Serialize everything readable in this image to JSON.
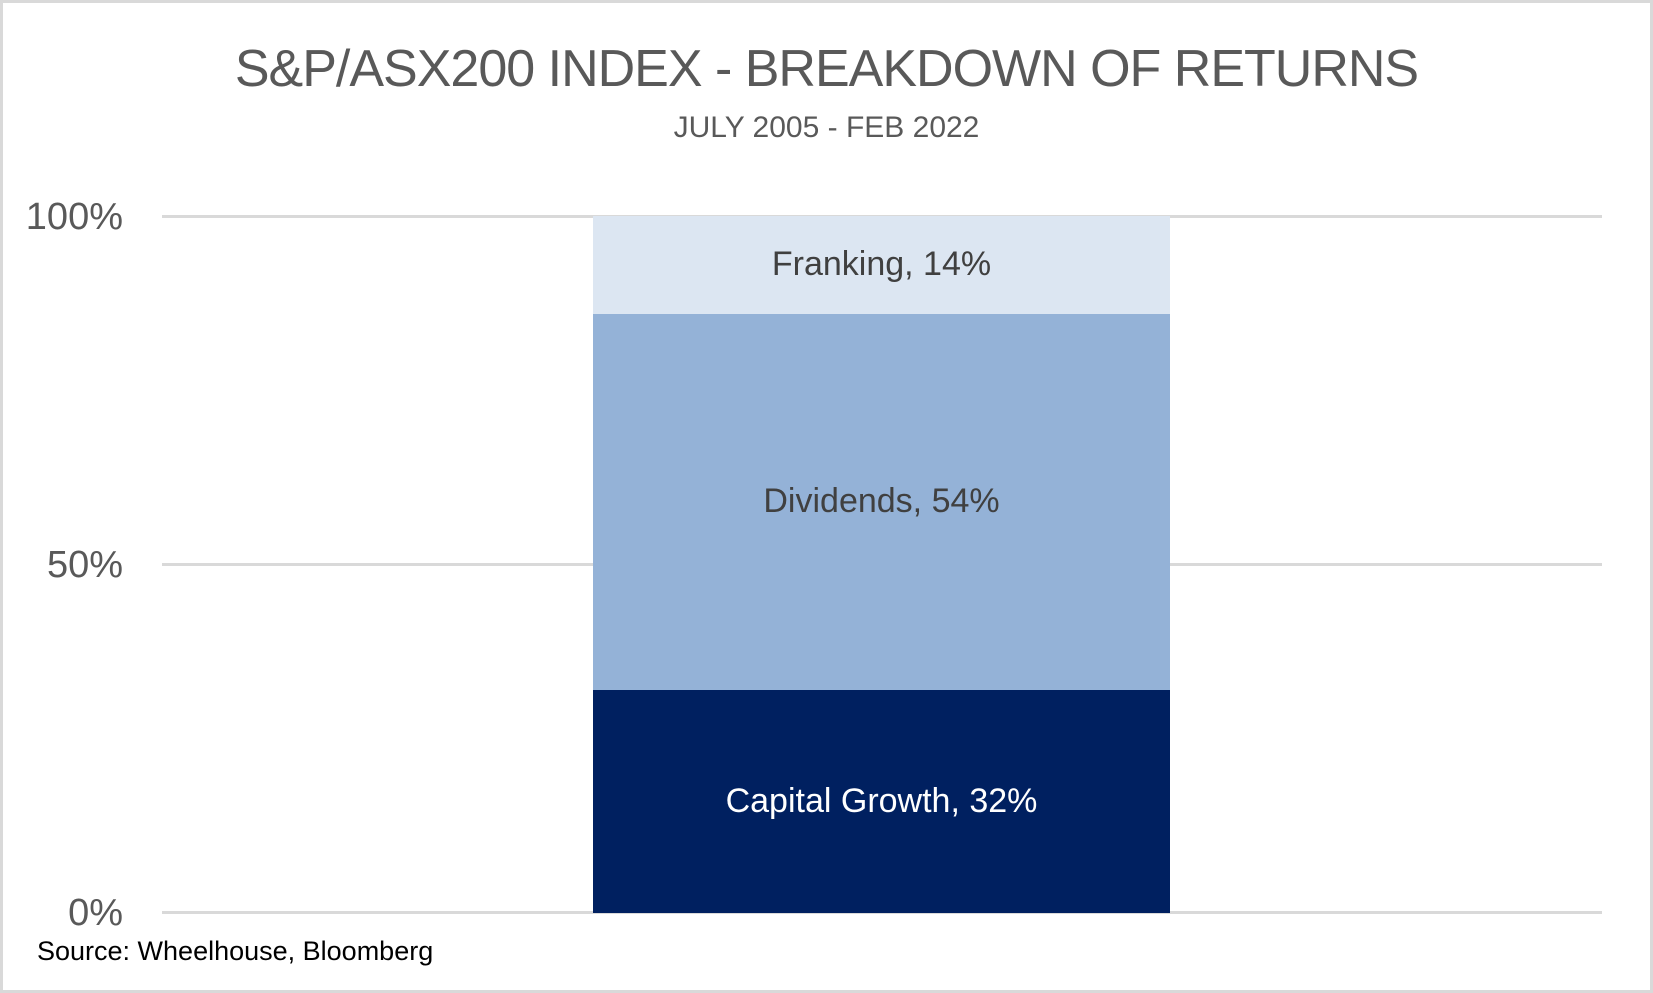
{
  "chart_data": {
    "type": "bar",
    "stacked": true,
    "title": "S&P/ASX200 INDEX - BREAKDOWN OF RETURNS",
    "subtitle": "JULY 2005 - FEB 2022",
    "series": [
      {
        "name": "Franking",
        "value": 14,
        "label": "Franking, 14%",
        "color": "#dce6f2",
        "label_color": "#404040"
      },
      {
        "name": "Dividends",
        "value": 54,
        "label": "Dividends, 54%",
        "color": "#94b2d7",
        "label_color": "#404040"
      },
      {
        "name": "Capital Growth",
        "value": 32,
        "label": "Capital Growth, 32%",
        "color": "#002060",
        "label_color": "#ffffff"
      }
    ],
    "series_order": "top-to-bottom",
    "y_axis": {
      "ticks": [
        "100%",
        "50%",
        "0%"
      ],
      "min": 0,
      "max": 100,
      "unit": "%"
    },
    "gridlines": true,
    "gridline_color": "#d9d9d9",
    "legend": "none",
    "source": "Source: Wheelhouse, Bloomberg",
    "title_color": "#595959",
    "axis_label_color": "#595959"
  }
}
